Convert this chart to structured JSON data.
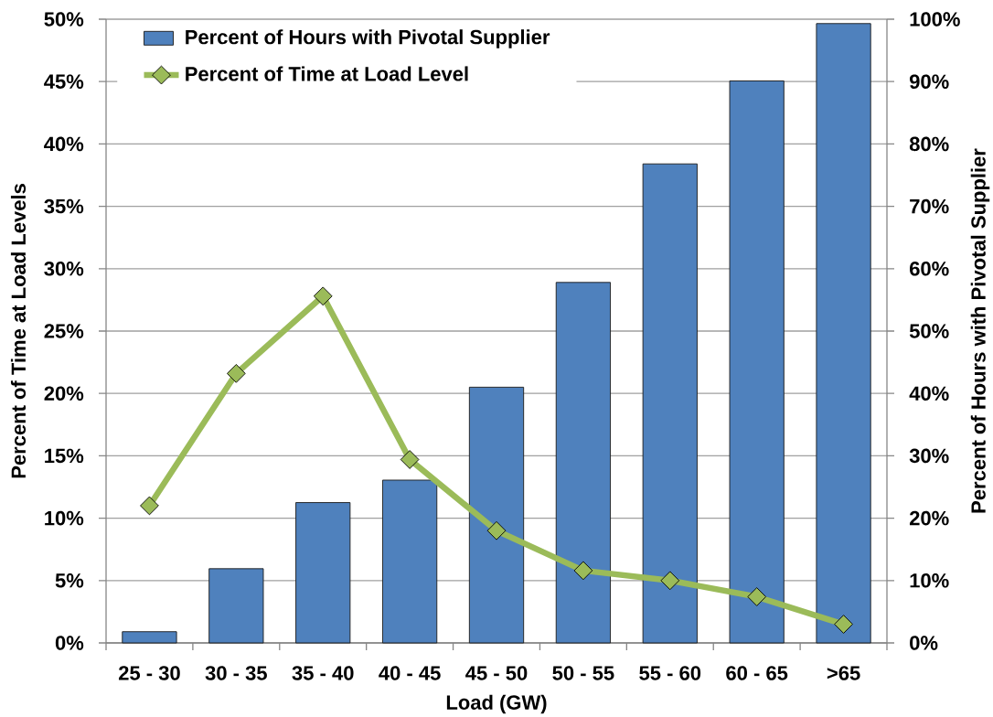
{
  "chart_data": {
    "type": "bar",
    "xlabel": "Load (GW)",
    "ylabel": "Percent of Time at Load Levels",
    "y2label": "Percent of Hours with Pivotal Supplier",
    "categories": [
      "25 - 30",
      "30 - 35",
      "35 - 40",
      "40 - 45",
      "45 - 50",
      "50 - 55",
      "55 - 60",
      "60 - 65",
      ">65"
    ],
    "series": [
      {
        "name": "Percent of Hours with Pivotal Supplier",
        "axis": "y2",
        "color": "#4f81bd",
        "values": [
          1.8,
          11.9,
          22.5,
          26.1,
          41.0,
          57.8,
          76.8,
          90.1,
          99.3
        ]
      },
      {
        "name": "Percent of Time at Load Level",
        "type": "line",
        "axis": "y",
        "color": "#9bbb59",
        "marker": "diamond",
        "values": [
          11.0,
          21.6,
          27.8,
          14.7,
          9.0,
          5.8,
          5.0,
          3.7,
          1.5
        ]
      }
    ],
    "ylim": [
      0,
      50
    ],
    "yticks": [
      {
        "value": 0,
        "label": "0%"
      },
      {
        "value": 5,
        "label": "5%"
      },
      {
        "value": 10,
        "label": "10%"
      },
      {
        "value": 15,
        "label": "15%"
      },
      {
        "value": 20,
        "label": "20%"
      },
      {
        "value": 25,
        "label": "25%"
      },
      {
        "value": 30,
        "label": "30%"
      },
      {
        "value": 35,
        "label": "35%"
      },
      {
        "value": 40,
        "label": "40%"
      },
      {
        "value": 45,
        "label": "45%"
      },
      {
        "value": 50,
        "label": "50%"
      }
    ],
    "y2lim": [
      0,
      100
    ],
    "y2ticks": [
      {
        "value": 0,
        "label": "0%"
      },
      {
        "value": 10,
        "label": "10%"
      },
      {
        "value": 20,
        "label": "20%"
      },
      {
        "value": 30,
        "label": "30%"
      },
      {
        "value": 40,
        "label": "40%"
      },
      {
        "value": 50,
        "label": "50%"
      },
      {
        "value": 60,
        "label": "60%"
      },
      {
        "value": 70,
        "label": "70%"
      },
      {
        "value": 80,
        "label": "80%"
      },
      {
        "value": 90,
        "label": "90%"
      },
      {
        "value": 100,
        "label": "100%"
      }
    ],
    "grid": "y",
    "legend": "top left"
  }
}
